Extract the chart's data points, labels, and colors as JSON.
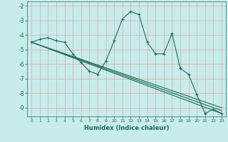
{
  "xlabel": "Humidex (Indice chaleur)",
  "bg_color": "#c8ecec",
  "grid_color": "#aed8d8",
  "line_color": "#1a6b5a",
  "xlim": [
    -0.5,
    23.5
  ],
  "ylim": [
    -9.6,
    -1.7
  ],
  "yticks": [
    -2,
    -3,
    -4,
    -5,
    -6,
    -7,
    -8,
    -9
  ],
  "xticks": [
    0,
    1,
    2,
    3,
    4,
    5,
    6,
    7,
    8,
    9,
    10,
    11,
    12,
    13,
    14,
    15,
    16,
    17,
    18,
    19,
    20,
    21,
    22,
    23
  ],
  "series1_x": [
    0,
    1,
    2,
    3,
    4,
    5,
    6,
    7,
    8,
    9,
    10,
    11,
    12,
    13,
    14,
    15,
    16,
    17,
    18,
    19,
    20,
    21,
    22,
    23
  ],
  "series1_y": [
    -4.5,
    -4.3,
    -4.2,
    -4.4,
    -4.5,
    -5.3,
    -5.9,
    -6.5,
    -6.7,
    -5.8,
    -4.4,
    -2.9,
    -2.4,
    -2.6,
    -4.5,
    -5.3,
    -5.3,
    -3.9,
    -6.3,
    -6.7,
    -8.1,
    -9.4,
    -9.1,
    -9.4
  ],
  "series2_x": [
    0,
    23
  ],
  "series2_y": [
    -4.5,
    -9.4
  ],
  "series3_x": [
    0,
    23
  ],
  "series3_y": [
    -4.5,
    -9.2
  ],
  "series4_x": [
    0,
    23
  ],
  "series4_y": [
    -4.5,
    -9.0
  ]
}
